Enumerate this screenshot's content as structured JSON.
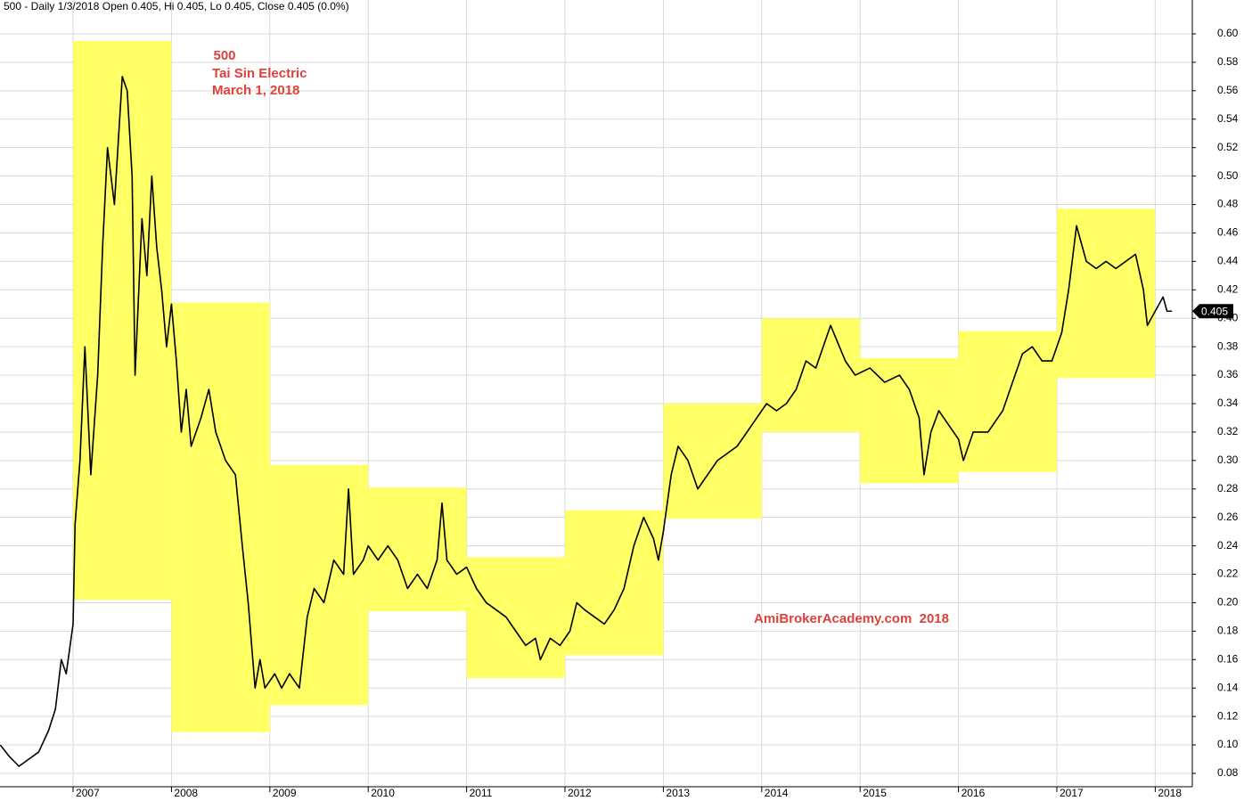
{
  "chart_data": {
    "type": "line",
    "title": "500 - Daily 1/3/2018 Open 0.405, Hi 0.405, Lo 0.405, Close 0.405 (0.0%)",
    "annotations": [
      "500",
      "Tai Sin Electric",
      "March 1, 2018",
      "AmiBrokerAcademy.com  2018"
    ],
    "color": "#000000",
    "highlight_color": "#ffff66",
    "grid": true,
    "xlim": [
      2006.257,
      2018.377
    ],
    "xticks": [
      2007,
      2008,
      2009,
      2010,
      2011,
      2012,
      2013,
      2014,
      2015,
      2016,
      2017,
      2018
    ],
    "ylim": [
      0.0706,
      0.6238
    ],
    "yticks": [
      0.08,
      {
        "value": 0.1,
        "label": "0.10"
      },
      0.12,
      0.14,
      0.16,
      0.18,
      {
        "value": 0.2,
        "label": "0.20"
      },
      0.22,
      0.24,
      0.26,
      0.28,
      {
        "value": 0.3,
        "label": "0.30"
      },
      0.32,
      0.34,
      0.36,
      0.38,
      {
        "value": 0.4,
        "label": "0.40"
      },
      0.42,
      0.44,
      0.46,
      0.48,
      {
        "value": 0.5,
        "label": "0.50"
      },
      0.52,
      0.54,
      0.56,
      0.58,
      {
        "value": 0.6,
        "label": "0.60"
      }
    ],
    "last_value": 0.405,
    "highlights": [
      {
        "x": [
          2007,
          2008
        ],
        "range": [
          0.202,
          0.595
        ]
      },
      {
        "x": [
          2008,
          2009
        ],
        "range": [
          0.109,
          0.411
        ]
      },
      {
        "x": [
          2009,
          2010
        ],
        "range": [
          0.128,
          0.297
        ]
      },
      {
        "x": [
          2010,
          2011
        ],
        "range": [
          0.194,
          0.281
        ]
      },
      {
        "x": [
          2011,
          2012
        ],
        "range": [
          0.147,
          0.232
        ]
      },
      {
        "x": [
          2012,
          2013
        ],
        "range": [
          0.163,
          0.265
        ]
      },
      {
        "x": [
          2013,
          2014
        ],
        "range": [
          0.259,
          0.34
        ]
      },
      {
        "x": [
          2014,
          2015
        ],
        "range": [
          0.32,
          0.4
        ]
      },
      {
        "x": [
          2015,
          2016
        ],
        "range": [
          0.284,
          0.372
        ]
      },
      {
        "x": [
          2016,
          2017
        ],
        "range": [
          0.292,
          0.391
        ]
      },
      {
        "x": [
          2017,
          2018
        ],
        "range": [
          0.358,
          0.477
        ]
      }
    ],
    "x": [
      2006.26,
      2006.35,
      2006.45,
      2006.55,
      2006.65,
      2006.75,
      2006.82,
      2006.88,
      2006.93,
      2006.97,
      2007.0,
      2007.02,
      2007.07,
      2007.12,
      2007.18,
      2007.25,
      2007.3,
      2007.35,
      2007.42,
      2007.5,
      2007.55,
      2007.6,
      2007.63,
      2007.7,
      2007.75,
      2007.8,
      2007.85,
      2007.9,
      2007.95,
      2008.0,
      2008.05,
      2008.1,
      2008.15,
      2008.2,
      2008.3,
      2008.38,
      2008.45,
      2008.55,
      2008.65,
      2008.72,
      2008.78,
      2008.85,
      2008.9,
      2008.95,
      2009.05,
      2009.12,
      2009.2,
      2009.3,
      2009.38,
      2009.45,
      2009.55,
      2009.65,
      2009.75,
      2009.8,
      2009.85,
      2009.95,
      2010.0,
      2010.1,
      2010.2,
      2010.3,
      2010.4,
      2010.5,
      2010.6,
      2010.7,
      2010.75,
      2010.8,
      2010.9,
      2011.0,
      2011.1,
      2011.2,
      2011.3,
      2011.4,
      2011.5,
      2011.6,
      2011.7,
      2011.75,
      2011.85,
      2011.95,
      2012.05,
      2012.12,
      2012.2,
      2012.3,
      2012.4,
      2012.5,
      2012.6,
      2012.7,
      2012.8,
      2012.9,
      2012.95,
      2013.0,
      2013.08,
      2013.15,
      2013.25,
      2013.35,
      2013.45,
      2013.55,
      2013.65,
      2013.75,
      2013.85,
      2013.95,
      2014.05,
      2014.15,
      2014.25,
      2014.35,
      2014.45,
      2014.55,
      2014.7,
      2014.85,
      2014.95,
      2015.1,
      2015.25,
      2015.4,
      2015.5,
      2015.6,
      2015.65,
      2015.72,
      2015.8,
      2015.9,
      2016.0,
      2016.05,
      2016.15,
      2016.3,
      2016.45,
      2016.55,
      2016.65,
      2016.75,
      2016.85,
      2016.95,
      2017.05,
      2017.12,
      2017.2,
      2017.3,
      2017.4,
      2017.5,
      2017.6,
      2017.7,
      2017.8,
      2017.88,
      2017.92,
      2018.0,
      2018.08,
      2018.12,
      2018.17
    ],
    "values": [
      0.1,
      0.092,
      0.085,
      0.09,
      0.095,
      0.11,
      0.125,
      0.16,
      0.15,
      0.17,
      0.185,
      0.255,
      0.3,
      0.38,
      0.29,
      0.36,
      0.45,
      0.52,
      0.48,
      0.57,
      0.56,
      0.5,
      0.36,
      0.47,
      0.43,
      0.5,
      0.45,
      0.42,
      0.38,
      0.41,
      0.37,
      0.32,
      0.35,
      0.31,
      0.33,
      0.35,
      0.32,
      0.3,
      0.29,
      0.24,
      0.2,
      0.14,
      0.16,
      0.14,
      0.15,
      0.14,
      0.15,
      0.14,
      0.19,
      0.21,
      0.2,
      0.23,
      0.22,
      0.28,
      0.22,
      0.23,
      0.24,
      0.23,
      0.24,
      0.23,
      0.21,
      0.22,
      0.21,
      0.23,
      0.27,
      0.23,
      0.22,
      0.225,
      0.21,
      0.2,
      0.195,
      0.19,
      0.18,
      0.17,
      0.175,
      0.16,
      0.175,
      0.17,
      0.18,
      0.2,
      0.195,
      0.19,
      0.185,
      0.195,
      0.21,
      0.24,
      0.26,
      0.245,
      0.23,
      0.25,
      0.29,
      0.31,
      0.3,
      0.28,
      0.29,
      0.3,
      0.305,
      0.31,
      0.32,
      0.33,
      0.34,
      0.335,
      0.34,
      0.35,
      0.37,
      0.365,
      0.395,
      0.37,
      0.36,
      0.365,
      0.355,
      0.36,
      0.35,
      0.33,
      0.29,
      0.32,
      0.335,
      0.325,
      0.315,
      0.3,
      0.32,
      0.32,
      0.335,
      0.355,
      0.375,
      0.38,
      0.37,
      0.37,
      0.39,
      0.42,
      0.465,
      0.44,
      0.435,
      0.44,
      0.435,
      0.44,
      0.445,
      0.42,
      0.395,
      0.405,
      0.415,
      0.405,
      0.405
    ]
  }
}
